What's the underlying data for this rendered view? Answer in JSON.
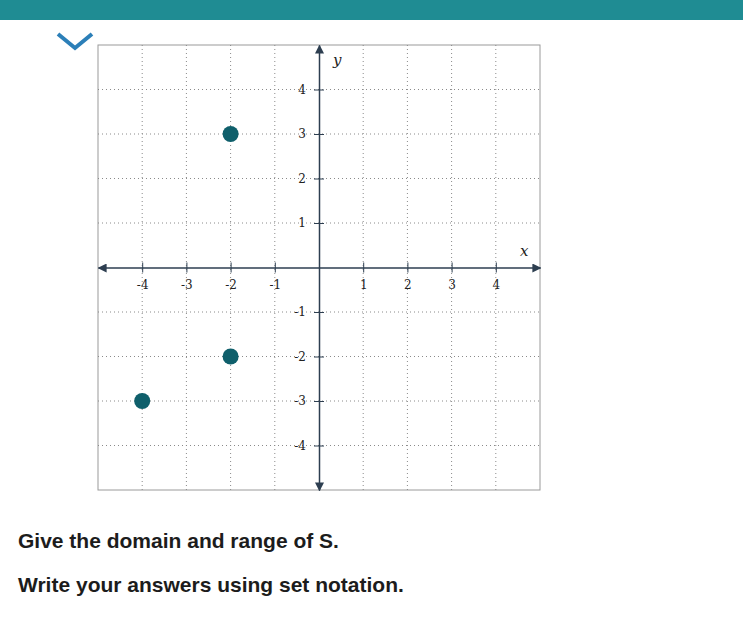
{
  "chart_data": {
    "type": "scatter",
    "xlabel": "x",
    "ylabel": "y",
    "x": [
      -2,
      -2,
      -4
    ],
    "values": [
      3,
      -2,
      -3
    ],
    "color": "#0f5f6b",
    "marker": "circle",
    "xlim": [
      -5,
      5
    ],
    "ylim": [
      -5,
      5
    ],
    "xticks": [
      -4,
      -3,
      -2,
      -1,
      1,
      2,
      3,
      4
    ],
    "yticks": [
      -4,
      -3,
      -2,
      -1,
      1,
      2,
      3,
      4
    ],
    "grid": true
  },
  "prompt": [
    "Give the domain and range of S.",
    "Write your answers using set notation."
  ]
}
